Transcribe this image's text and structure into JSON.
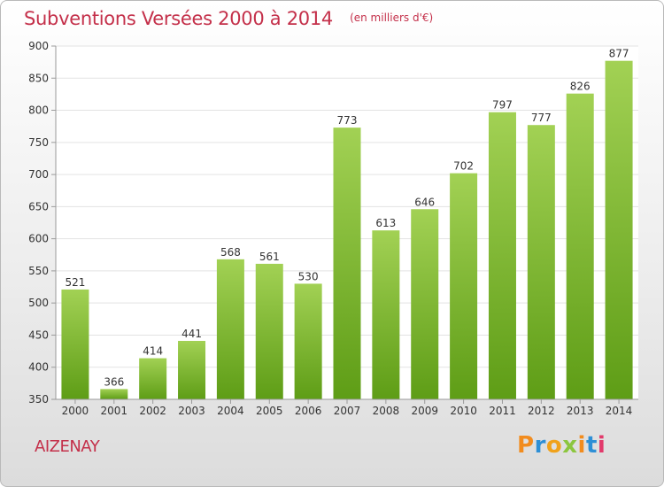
{
  "title": "Subventions Versées 2000 à 2014",
  "subtitle": "(en milliers d'€)",
  "place": "AIZENAY",
  "logo": {
    "letters": [
      "P",
      "r",
      "o",
      "x",
      "i",
      "t",
      "i"
    ],
    "colors": [
      "#f28c1e",
      "#2d8fd6",
      "#f0a21b",
      "#8cc63e",
      "#f28c1e",
      "#2d8fd6",
      "#e23a6b"
    ]
  },
  "colors": {
    "accent": "#c4304a",
    "bar_top": "#a2d154",
    "bar_bottom": "#5e9d16",
    "grid": "#e3e3e3",
    "axis": "#9a9a9a"
  },
  "chart_data": {
    "type": "bar",
    "categories": [
      "2000",
      "2001",
      "2002",
      "2003",
      "2004",
      "2005",
      "2006",
      "2007",
      "2008",
      "2009",
      "2010",
      "2011",
      "2012",
      "2013",
      "2014"
    ],
    "values": [
      521,
      366,
      414,
      441,
      568,
      561,
      530,
      773,
      613,
      646,
      702,
      797,
      777,
      826,
      877
    ],
    "ylim": [
      350,
      900
    ],
    "yticks": [
      350,
      400,
      450,
      500,
      550,
      600,
      650,
      700,
      750,
      800,
      850,
      900
    ],
    "grid": true,
    "data_labels": true
  }
}
